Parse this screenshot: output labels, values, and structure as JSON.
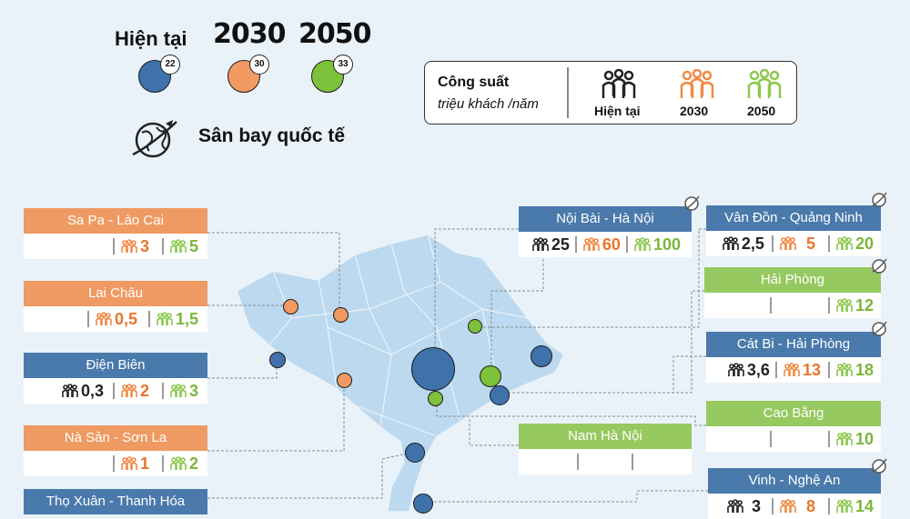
{
  "legend": {
    "now_label": "Hiện tại",
    "y2030_label": "2030",
    "y2050_label": "2050",
    "now_count": "22",
    "y2030_count": "30",
    "y2050_count": "33",
    "airport_label": "Sân bay quốc tế",
    "colors": {
      "now": "#3f72ab",
      "y2030": "#f29a63",
      "y2050": "#7cc23a"
    }
  },
  "capacity": {
    "title": "Công suất",
    "subtitle": "triệu khách /năm",
    "now": "Hiện tại",
    "y2030": "2030",
    "y2050": "2050"
  },
  "airports_left": [
    {
      "name": "Sa Pa - Lào Cai",
      "now": "",
      "y2030": "3",
      "y2050": "5"
    },
    {
      "name": "Lai Châu",
      "now": "",
      "y2030": "0,5",
      "y2050": "1,5"
    },
    {
      "name": "Điện Biên",
      "now": "0,3",
      "y2030": "2",
      "y2050": "3"
    },
    {
      "name": "Nà Sản - Sơn La",
      "now": "",
      "y2030": "1",
      "y2050": "2"
    },
    {
      "name": "Thọ Xuân - Thanh Hóa"
    }
  ],
  "airports_right": [
    {
      "name": "Nội Bài - Hà Nội",
      "now": "25",
      "y2030": "60",
      "y2050": "100"
    },
    {
      "name": "Vân Đồn - Quảng Ninh",
      "now": "2,5",
      "y2030": "5",
      "y2050": "20"
    },
    {
      "name": "Hải Phòng",
      "now": "",
      "y2030": "",
      "y2050": "12"
    },
    {
      "name": "Cát Bi - Hải Phòng",
      "now": "3,6",
      "y2030": "13",
      "y2050": "18"
    },
    {
      "name": "Cao Bằng",
      "now": "",
      "y2030": "",
      "y2050": "10"
    },
    {
      "name": "Nam Hà Nội",
      "now": "",
      "y2030": "",
      "y2050": ""
    },
    {
      "name": "Vinh - Nghệ An",
      "now": "3",
      "y2030": "8",
      "y2050": "14"
    }
  ]
}
